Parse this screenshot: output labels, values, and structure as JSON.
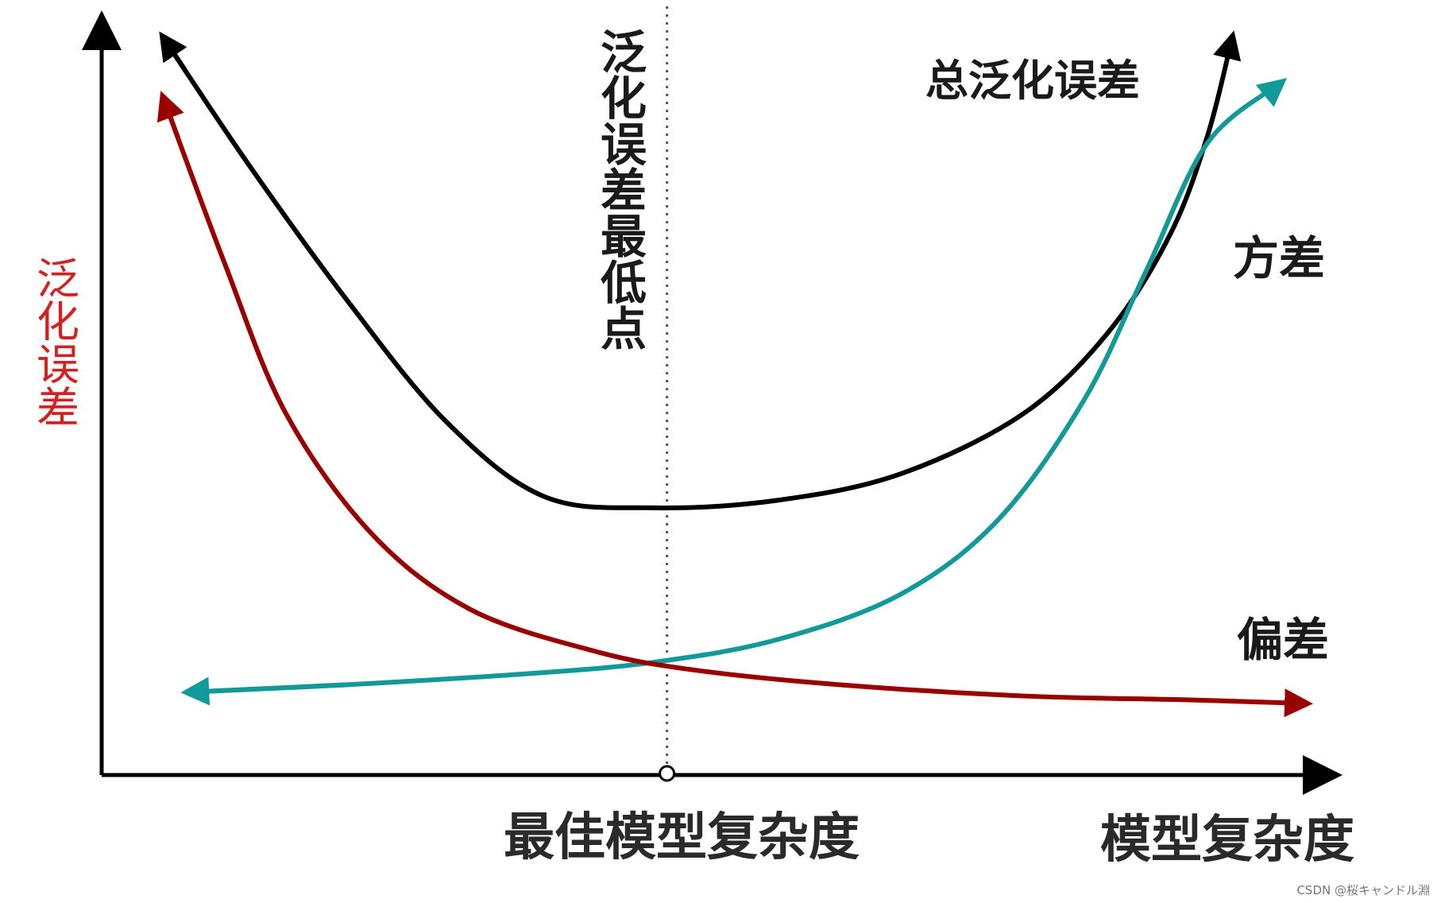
{
  "chart_data": {
    "type": "line",
    "xlabel": "模型复杂度",
    "ylabel": "泛化误差",
    "x_annotation": "最佳模型复杂度",
    "min_annotation": "泛化误差最低点",
    "grid": false,
    "legend": "none",
    "series": [
      {
        "name": "总泛化误差",
        "color": "#000000",
        "points": [
          [
            0.05,
            0.98
          ],
          [
            0.12,
            0.81
          ],
          [
            0.2,
            0.63
          ],
          [
            0.28,
            0.47
          ],
          [
            0.36,
            0.37
          ],
          [
            0.45,
            0.355
          ],
          [
            0.55,
            0.365
          ],
          [
            0.65,
            0.4
          ],
          [
            0.75,
            0.48
          ],
          [
            0.82,
            0.59
          ],
          [
            0.87,
            0.72
          ],
          [
            0.9,
            0.85
          ],
          [
            0.92,
            0.98
          ]
        ]
      },
      {
        "name": "方差",
        "color": "#129999",
        "points": [
          [
            0.07,
            0.11
          ],
          [
            0.2,
            0.12
          ],
          [
            0.35,
            0.135
          ],
          [
            0.45,
            0.15
          ],
          [
            0.55,
            0.18
          ],
          [
            0.65,
            0.24
          ],
          [
            0.73,
            0.34
          ],
          [
            0.8,
            0.5
          ],
          [
            0.85,
            0.67
          ],
          [
            0.9,
            0.84
          ],
          [
            0.96,
            0.92
          ]
        ]
      },
      {
        "name": "偏差",
        "color": "#990000",
        "points": [
          [
            0.05,
            0.9
          ],
          [
            0.1,
            0.68
          ],
          [
            0.15,
            0.48
          ],
          [
            0.22,
            0.32
          ],
          [
            0.3,
            0.22
          ],
          [
            0.4,
            0.165
          ],
          [
            0.48,
            0.14
          ],
          [
            0.6,
            0.12
          ],
          [
            0.75,
            0.105
          ],
          [
            0.88,
            0.1
          ],
          [
            0.98,
            0.095
          ]
        ]
      }
    ],
    "optimal_x": 0.46
  },
  "watermark": "CSDN @桜キャンドル淵"
}
